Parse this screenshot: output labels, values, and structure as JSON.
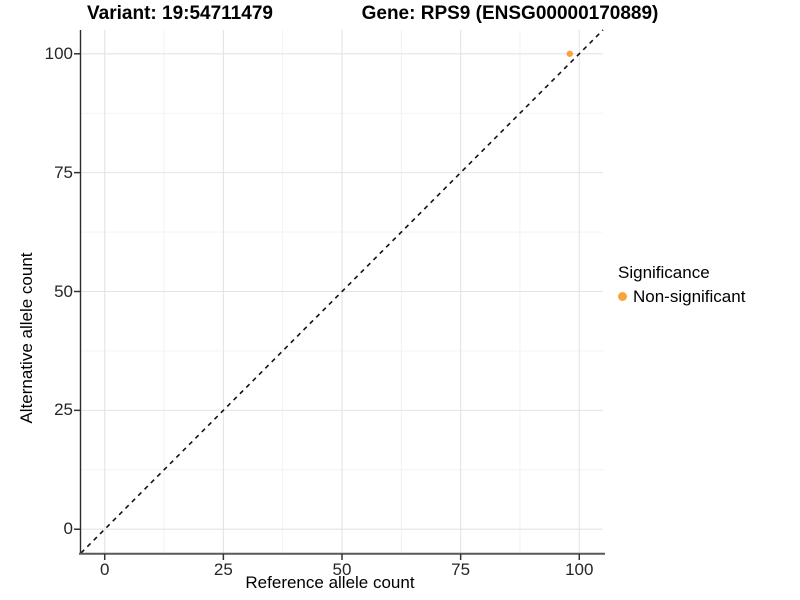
{
  "header": {
    "variant_title": "Variant: 19:54711479",
    "gene_title": "Gene: RPS9 (ENSG00000170889)"
  },
  "legend": {
    "title": "Significance",
    "items": [
      {
        "label": "Non-significant",
        "color": "#F9A43B"
      }
    ]
  },
  "chart_data": {
    "type": "scatter",
    "title_left": "Variant: 19:54711479",
    "title_right": "Gene: RPS9 (ENSG00000170889)",
    "xlabel": "Reference allele count",
    "ylabel": "Alternative allele count",
    "xlim": [
      -5,
      105
    ],
    "ylim": [
      -5,
      105
    ],
    "x_ticks": [
      0,
      25,
      50,
      75,
      100
    ],
    "y_ticks": [
      0,
      25,
      50,
      75,
      100
    ],
    "x_minor_ticks": [
      12.5,
      37.5,
      62.5,
      87.5
    ],
    "y_minor_ticks": [
      12.5,
      37.5,
      62.5,
      87.5
    ],
    "grid": "major+minor",
    "legend_position": "right",
    "series": [
      {
        "name": "Non-significant",
        "color": "#F9A43B",
        "points": [
          {
            "x": 98,
            "y": 100
          }
        ]
      }
    ],
    "reference_line": {
      "slope": 1,
      "intercept": 0,
      "style": "dashed",
      "color": "#111111"
    }
  },
  "style": {
    "background": "#FFFFFF",
    "grid_major_color": "#E4E4E4",
    "grid_minor_color": "#F1F1F1",
    "axis_line_color_x": "#595959",
    "axis_line_color_y": "#2B2B2B",
    "tick_mark_color": "#333333",
    "point_radius": 3.2
  }
}
